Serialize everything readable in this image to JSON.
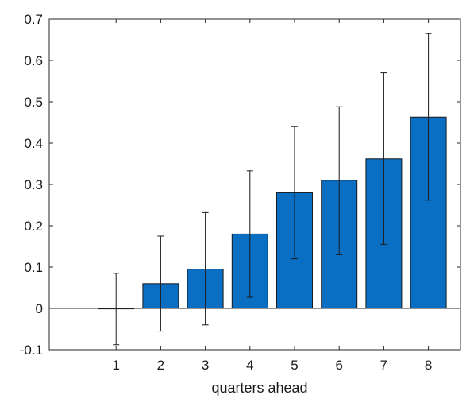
{
  "chart_data": {
    "type": "bar",
    "categories": [
      "1",
      "2",
      "3",
      "4",
      "5",
      "6",
      "7",
      "8"
    ],
    "values": [
      0.0,
      0.06,
      0.095,
      0.18,
      0.28,
      0.31,
      0.362,
      0.463
    ],
    "error_low": [
      -0.088,
      -0.055,
      -0.04,
      0.027,
      0.12,
      0.13,
      0.155,
      0.262
    ],
    "error_high": [
      0.085,
      0.175,
      0.232,
      0.333,
      0.44,
      0.488,
      0.57,
      0.665
    ],
    "title": "",
    "xlabel": "quarters ahead",
    "ylabel": "",
    "ylim": [
      -0.1,
      0.7
    ],
    "yticks": [
      "-0.1",
      "0",
      "0.1",
      "0.2",
      "0.3",
      "0.4",
      "0.5",
      "0.6",
      "0.7"
    ],
    "grid": false,
    "bar_color": "#0a6fc2"
  }
}
